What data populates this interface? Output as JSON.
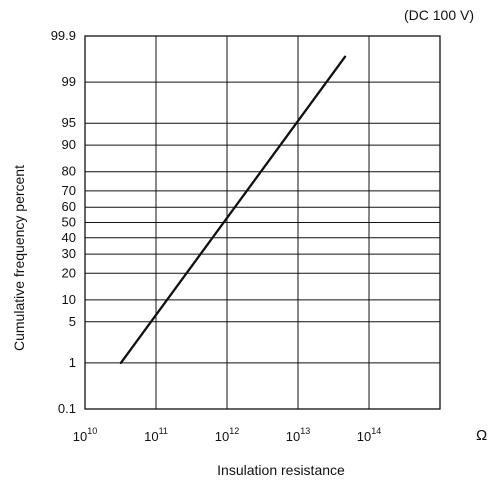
{
  "chart_data": {
    "type": "line",
    "title": "",
    "annotation": "(DC 100 V)",
    "xlabel": "Insulation resistance",
    "ylabel": "Cumulative frequency percent",
    "x_unit": "Ω",
    "x_scale": "log",
    "y_scale": "probability",
    "xlim": [
      10000000000.0,
      1000000000000000.0
    ],
    "ylim": [
      0.1,
      99.9
    ],
    "x_ticks": [
      {
        "value": 10000000000.0,
        "base": "10",
        "exp": "10"
      },
      {
        "value": 100000000000.0,
        "base": "10",
        "exp": "11"
      },
      {
        "value": 1000000000000.0,
        "base": "10",
        "exp": "12"
      },
      {
        "value": 10000000000000.0,
        "base": "10",
        "exp": "13"
      },
      {
        "value": 100000000000000.0,
        "base": "10",
        "exp": "14"
      }
    ],
    "y_ticks": [
      0.1,
      1,
      5,
      10,
      20,
      30,
      40,
      50,
      60,
      70,
      80,
      90,
      95,
      99,
      99.9
    ],
    "y_tick_labels": [
      "0.1",
      "1",
      "5",
      "10",
      "20",
      "30",
      "40",
      "50",
      "60",
      "70",
      "80",
      "90",
      "95",
      "99",
      "99.9"
    ],
    "grid": true,
    "series": [
      {
        "x": [
          32000000000.0,
          46000000000000.0
        ],
        "y": [
          1,
          99.7
        ]
      }
    ],
    "colors": {
      "line": "#111111",
      "grid": "#111111",
      "frame": "#111111"
    }
  }
}
